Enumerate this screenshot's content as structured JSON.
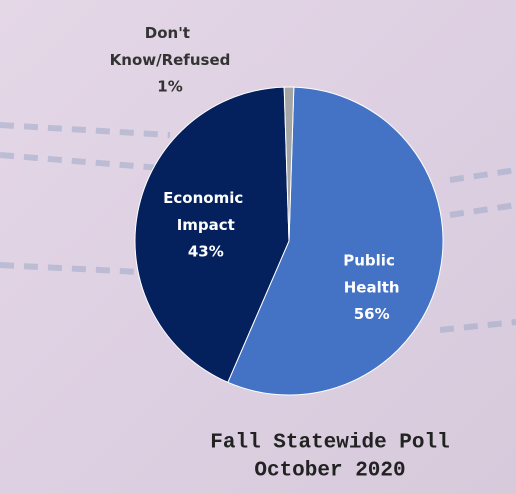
{
  "chart_data": {
    "type": "pie",
    "categories": [
      "Public Health",
      "Economic Impact",
      "Don't Know/Refused"
    ],
    "values": [
      56,
      43,
      1
    ],
    "value_labels": [
      "56%",
      "43%",
      "1%"
    ],
    "colors": [
      "#4472c4",
      "#04215e",
      "#a5a5a5"
    ],
    "title": "Fall Statewide Poll",
    "subtitle": "October 2020"
  }
}
